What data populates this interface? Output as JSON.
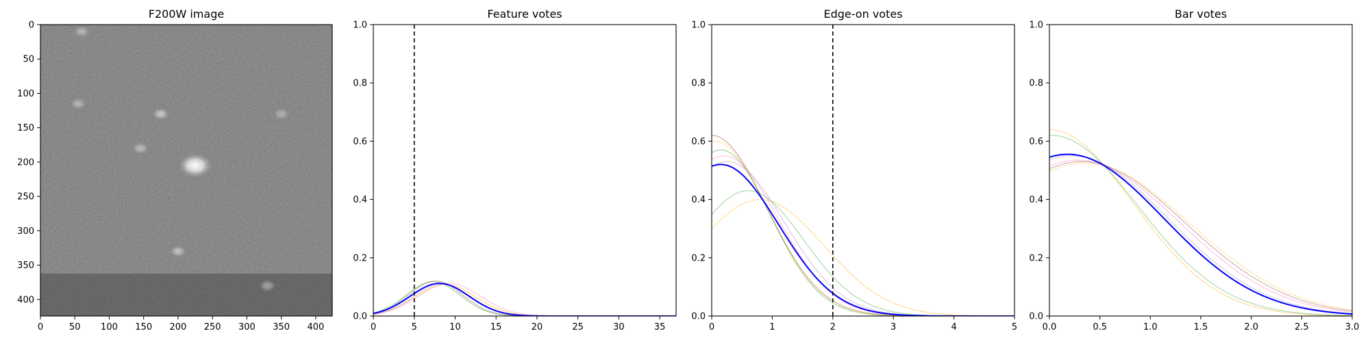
{
  "chart_data": [
    {
      "type": "image",
      "title": "F200W image",
      "x_ticks": [
        "0",
        "50",
        "100",
        "150",
        "200",
        "250",
        "300",
        "350",
        "400"
      ],
      "y_ticks": [
        "0",
        "50",
        "100",
        "150",
        "200",
        "250",
        "300",
        "350",
        "400"
      ],
      "xlim": [
        0,
        424
      ],
      "ylim": [
        424,
        0
      ],
      "colormap": "gray",
      "features": [
        {
          "kind": "bright-source",
          "x": 225,
          "y": 205,
          "brightness": 1.0
        },
        {
          "kind": "faint-source",
          "x": 175,
          "y": 130,
          "brightness": 0.55
        },
        {
          "kind": "faint-source",
          "x": 145,
          "y": 180,
          "brightness": 0.45
        },
        {
          "kind": "faint-source",
          "x": 55,
          "y": 115,
          "brightness": 0.4
        },
        {
          "kind": "faint-source",
          "x": 200,
          "y": 330,
          "brightness": 0.5
        },
        {
          "kind": "faint-source",
          "x": 60,
          "y": 10,
          "brightness": 0.4
        },
        {
          "kind": "faint-source",
          "x": 350,
          "y": 130,
          "brightness": 0.35
        },
        {
          "kind": "faint-source",
          "x": 330,
          "y": 380,
          "brightness": 0.4
        }
      ]
    },
    {
      "type": "line",
      "title": "Feature votes",
      "xlim": [
        0,
        37
      ],
      "ylim": [
        0,
        1.0
      ],
      "x_ticks": [
        "0",
        "5",
        "10",
        "15",
        "20",
        "25",
        "30",
        "35"
      ],
      "y_ticks": [
        "0.0",
        "0.2",
        "0.4",
        "0.6",
        "0.8",
        "1.0"
      ],
      "vline": 5,
      "series": [
        {
          "color": "#0000ff",
          "width": 2.0,
          "opacity": 1.0,
          "mu": 8.1,
          "sigma": 3.6,
          "amp": 0.112
        },
        {
          "color": "#2ca02c",
          "width": 1.2,
          "opacity": 0.45,
          "mu": 7.3,
          "sigma": 3.3,
          "amp": 0.118
        },
        {
          "color": "#ffa500",
          "width": 1.2,
          "opacity": 0.45,
          "mu": 8.8,
          "sigma": 3.7,
          "amp": 0.108
        },
        {
          "color": "#ff69b4",
          "width": 1.2,
          "opacity": 0.4,
          "mu": 9.3,
          "sigma": 3.8,
          "amp": 0.112
        },
        {
          "color": "#8c564b",
          "width": 1.2,
          "opacity": 0.45,
          "mu": 7.6,
          "sigma": 3.3,
          "amp": 0.12
        },
        {
          "color": "#9467bd",
          "width": 1.2,
          "opacity": 0.35,
          "mu": 8.4,
          "sigma": 3.5,
          "amp": 0.11
        }
      ]
    },
    {
      "type": "line",
      "title": "Edge-on votes",
      "xlim": [
        0,
        5
      ],
      "ylim": [
        0,
        1.0
      ],
      "x_ticks": [
        "0",
        "1",
        "2",
        "3",
        "4",
        "5"
      ],
      "y_ticks": [
        "0.0",
        "0.2",
        "0.4",
        "0.6",
        "0.8",
        "1.0"
      ],
      "vline": 2,
      "series": [
        {
          "color": "#0000ff",
          "width": 2.0,
          "opacity": 1.0,
          "mu": 0.15,
          "sigma": 0.95,
          "amp": 0.52
        },
        {
          "color": "#ffa500",
          "width": 1.2,
          "opacity": 0.4,
          "mu": 0.8,
          "sigma": 1.05,
          "amp": 0.4
        },
        {
          "color": "#2ca02c",
          "width": 1.2,
          "opacity": 0.4,
          "mu": 0.6,
          "sigma": 0.92,
          "amp": 0.43
        },
        {
          "color": "#8c564b",
          "width": 1.2,
          "opacity": 0.5,
          "mu": 0.0,
          "sigma": 0.9,
          "amp": 0.62
        },
        {
          "color": "#2ca02c",
          "width": 1.2,
          "opacity": 0.45,
          "mu": 0.15,
          "sigma": 0.82,
          "amp": 0.57
        },
        {
          "color": "#ff69b4",
          "width": 1.2,
          "opacity": 0.4,
          "mu": 0.2,
          "sigma": 0.9,
          "amp": 0.55
        },
        {
          "color": "#9467bd",
          "width": 1.2,
          "opacity": 0.35,
          "mu": 0.25,
          "sigma": 0.95,
          "amp": 0.53
        },
        {
          "color": "#ffa500",
          "width": 1.2,
          "opacity": 0.35,
          "mu": 0.05,
          "sigma": 0.88,
          "amp": 0.6
        }
      ]
    },
    {
      "type": "line",
      "title": "Bar votes",
      "xlim": [
        0,
        3.0
      ],
      "ylim": [
        0,
        1.0
      ],
      "x_ticks": [
        "0.0",
        "0.5",
        "1.0",
        "1.5",
        "2.0",
        "2.5",
        "3.0"
      ],
      "y_ticks": [
        "0.0",
        "0.2",
        "0.4",
        "0.6",
        "0.8",
        "1.0"
      ],
      "series": [
        {
          "color": "#0000ff",
          "width": 2.0,
          "opacity": 1.0,
          "mu": 0.18,
          "sigma": 0.95,
          "amp": 0.555
        },
        {
          "color": "#ffa500",
          "width": 1.2,
          "opacity": 0.4,
          "mu": 0.0,
          "sigma": 0.83,
          "amp": 0.64
        },
        {
          "color": "#2ca02c",
          "width": 1.2,
          "opacity": 0.4,
          "mu": 0.02,
          "sigma": 0.86,
          "amp": 0.62
        },
        {
          "color": "#8c564b",
          "width": 1.2,
          "opacity": 0.45,
          "mu": 0.32,
          "sigma": 1.02,
          "amp": 0.53
        },
        {
          "color": "#ff69b4",
          "width": 1.2,
          "opacity": 0.4,
          "mu": 0.28,
          "sigma": 1.0,
          "amp": 0.535
        },
        {
          "color": "#9467bd",
          "width": 1.2,
          "opacity": 0.35,
          "mu": 0.22,
          "sigma": 0.96,
          "amp": 0.55
        },
        {
          "color": "#ffa500",
          "width": 1.2,
          "opacity": 0.3,
          "mu": 0.35,
          "sigma": 1.04,
          "amp": 0.525
        }
      ]
    }
  ]
}
